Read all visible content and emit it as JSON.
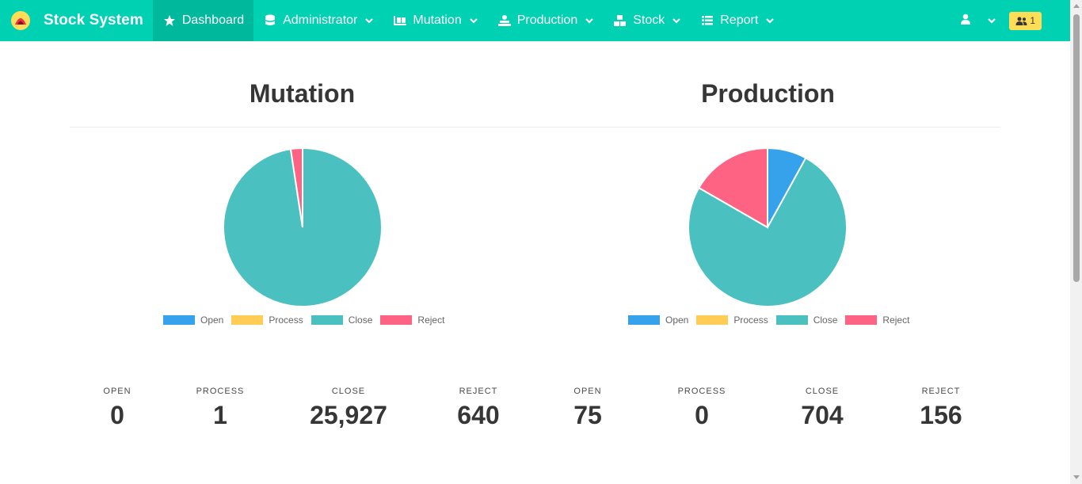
{
  "navbar": {
    "brand": "Stock System",
    "items": [
      {
        "label": "Dashboard",
        "icon": "star-icon",
        "dropdown": false,
        "active": true
      },
      {
        "label": "Administrator",
        "icon": "database-icon",
        "dropdown": true
      },
      {
        "label": "Mutation",
        "icon": "dolly-icon",
        "dropdown": true
      },
      {
        "label": "Production",
        "icon": "industry-icon",
        "dropdown": true
      },
      {
        "label": "Stock",
        "icon": "boxes-icon",
        "dropdown": true
      },
      {
        "label": "Report",
        "icon": "list-icon",
        "dropdown": true
      }
    ],
    "user_icon": "user-icon",
    "badge": {
      "icon": "users-icon",
      "count": "1"
    }
  },
  "colors": {
    "primary": "#00d1b2",
    "active": "#00b89c",
    "open": "#36a2eb",
    "process": "#ffcd56",
    "close": "#4bc0c0",
    "reject": "#ff6384",
    "badge": "#ffdd57"
  },
  "mutation": {
    "title": "Mutation",
    "legend": [
      "Open",
      "Process",
      "Close",
      "Reject"
    ],
    "stats": [
      {
        "heading": "OPEN",
        "value": "0"
      },
      {
        "heading": "PROCESS",
        "value": "1"
      },
      {
        "heading": "CLOSE",
        "value": "25,927"
      },
      {
        "heading": "REJECT",
        "value": "640"
      }
    ]
  },
  "production": {
    "title": "Production",
    "legend": [
      "Open",
      "Process",
      "Close",
      "Reject"
    ],
    "stats": [
      {
        "heading": "OPEN",
        "value": "75"
      },
      {
        "heading": "PROCESS",
        "value": "0"
      },
      {
        "heading": "CLOSE",
        "value": "704"
      },
      {
        "heading": "REJECT",
        "value": "156"
      }
    ]
  },
  "chart_data": [
    {
      "type": "pie",
      "categories": [
        "Open",
        "Process",
        "Close",
        "Reject"
      ],
      "values": [
        0,
        1,
        25927,
        640
      ],
      "colors": [
        "#36a2eb",
        "#ffcd56",
        "#4bc0c0",
        "#ff6384"
      ],
      "title": "Mutation",
      "legend": "bottom"
    },
    {
      "type": "pie",
      "categories": [
        "Open",
        "Process",
        "Close",
        "Reject"
      ],
      "values": [
        75,
        0,
        704,
        156
      ],
      "colors": [
        "#36a2eb",
        "#ffcd56",
        "#4bc0c0",
        "#ff6384"
      ],
      "title": "Production",
      "legend": "bottom"
    }
  ]
}
